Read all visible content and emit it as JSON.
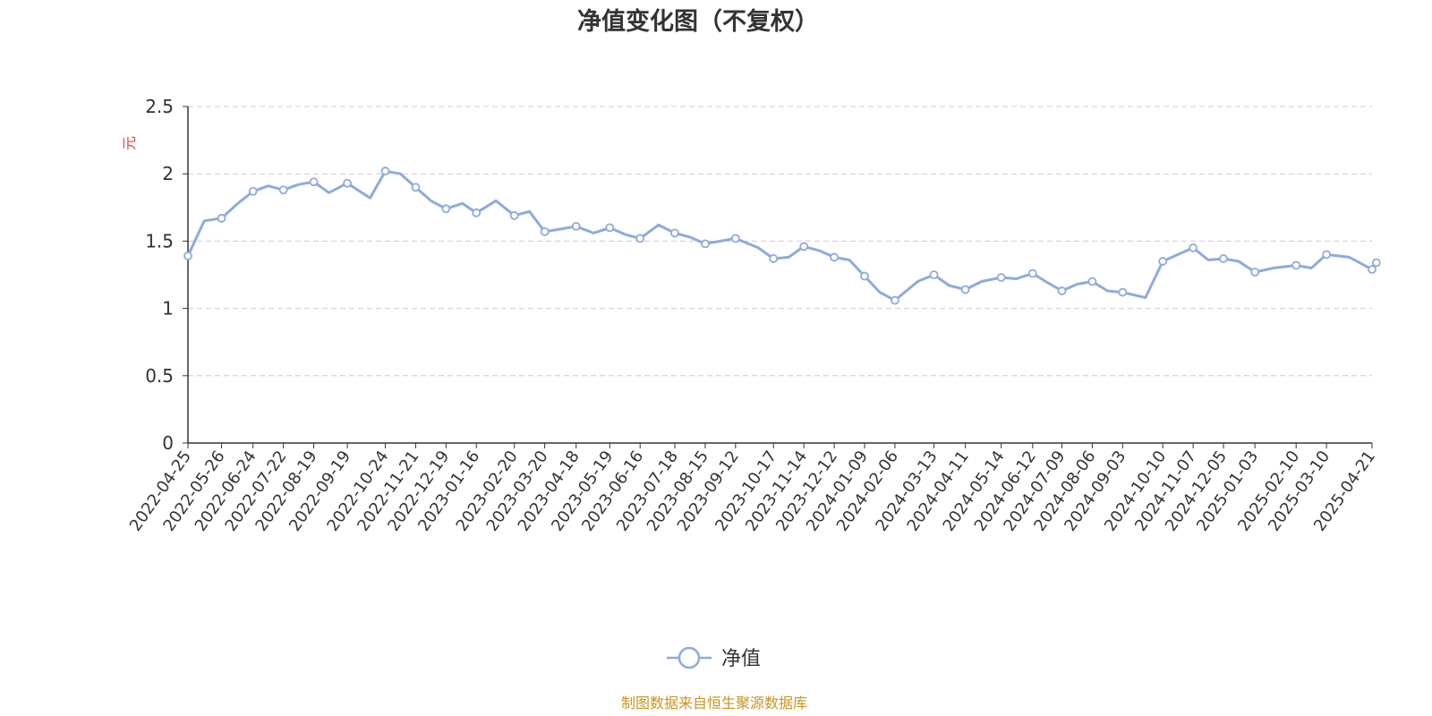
{
  "chart_data": {
    "type": "line",
    "title": "净值变化图（不复权）",
    "ylabel": "元",
    "ylim": [
      0,
      2.5
    ],
    "yticks": [
      "0",
      "0.5",
      "1",
      "1.5",
      "2",
      "2.5"
    ],
    "grid": true,
    "legend_position": "bottom-center",
    "x_tick_labels": [
      "2022-04-25",
      "2022-05-26",
      "2022-06-24",
      "2022-07-22",
      "2022-08-19",
      "2022-09-19",
      "2022-10-24",
      "2022-11-21",
      "2022-12-19",
      "2023-01-16",
      "2023-02-20",
      "2023-03-20",
      "2023-04-18",
      "2023-05-19",
      "2023-06-16",
      "2023-07-18",
      "2023-08-15",
      "2023-09-12",
      "2023-10-17",
      "2023-11-14",
      "2023-12-12",
      "2024-01-09",
      "2024-02-06",
      "2024-03-13",
      "2024-04-11",
      "2024-05-14",
      "2024-06-12",
      "2024-07-09",
      "2024-08-06",
      "2024-09-03",
      "2024-10-10",
      "2024-11-07",
      "2024-12-05",
      "2025-01-03",
      "2025-02-10",
      "2025-03-10",
      "2025-04-21"
    ],
    "series": [
      {
        "name": "净值",
        "color": "#8faadc",
        "x": [
          "2022-04-25",
          "2022-05-10",
          "2022-05-26",
          "2022-06-10",
          "2022-06-24",
          "2022-07-08",
          "2022-07-22",
          "2022-08-05",
          "2022-08-19",
          "2022-09-02",
          "2022-09-19",
          "2022-10-10",
          "2022-10-24",
          "2022-11-07",
          "2022-11-21",
          "2022-12-05",
          "2022-12-19",
          "2023-01-03",
          "2023-01-16",
          "2023-02-03",
          "2023-02-20",
          "2023-03-06",
          "2023-03-20",
          "2023-04-04",
          "2023-04-18",
          "2023-05-04",
          "2023-05-19",
          "2023-06-02",
          "2023-06-16",
          "2023-07-03",
          "2023-07-18",
          "2023-08-01",
          "2023-08-15",
          "2023-08-29",
          "2023-09-12",
          "2023-10-03",
          "2023-10-17",
          "2023-10-31",
          "2023-11-14",
          "2023-11-28",
          "2023-12-12",
          "2023-12-26",
          "2024-01-09",
          "2024-01-23",
          "2024-02-06",
          "2024-02-27",
          "2024-03-13",
          "2024-03-27",
          "2024-04-11",
          "2024-04-26",
          "2024-05-14",
          "2024-05-28",
          "2024-06-12",
          "2024-06-26",
          "2024-07-09",
          "2024-07-23",
          "2024-08-06",
          "2024-08-20",
          "2024-09-03",
          "2024-09-24",
          "2024-10-10",
          "2024-10-24",
          "2024-11-07",
          "2024-11-21",
          "2024-12-05",
          "2024-12-19",
          "2025-01-03",
          "2025-01-20",
          "2025-02-10",
          "2025-02-24",
          "2025-03-10",
          "2025-03-31",
          "2025-04-21",
          "2025-04-25"
        ],
        "values": [
          1.39,
          1.65,
          1.67,
          1.78,
          1.87,
          1.91,
          1.88,
          1.92,
          1.94,
          1.86,
          1.93,
          1.82,
          2.02,
          2.0,
          1.9,
          1.8,
          1.74,
          1.78,
          1.71,
          1.8,
          1.69,
          1.72,
          1.57,
          1.59,
          1.61,
          1.56,
          1.6,
          1.55,
          1.52,
          1.62,
          1.56,
          1.53,
          1.48,
          1.5,
          1.52,
          1.45,
          1.37,
          1.38,
          1.46,
          1.43,
          1.38,
          1.36,
          1.24,
          1.12,
          1.06,
          1.2,
          1.25,
          1.17,
          1.14,
          1.2,
          1.23,
          1.22,
          1.26,
          1.19,
          1.13,
          1.18,
          1.2,
          1.13,
          1.12,
          1.08,
          1.35,
          1.4,
          1.45,
          1.36,
          1.37,
          1.35,
          1.27,
          1.3,
          1.32,
          1.3,
          1.4,
          1.38,
          1.29,
          1.34
        ]
      }
    ]
  },
  "legend": {
    "label": "净值"
  },
  "source_note": "制图数据来自恒生聚源数据库",
  "colors": {
    "line": "#8faadc",
    "unit_label": "#e0413a",
    "source_note": "#c9941e",
    "grid": "#cccccc",
    "axis": "#333333"
  }
}
